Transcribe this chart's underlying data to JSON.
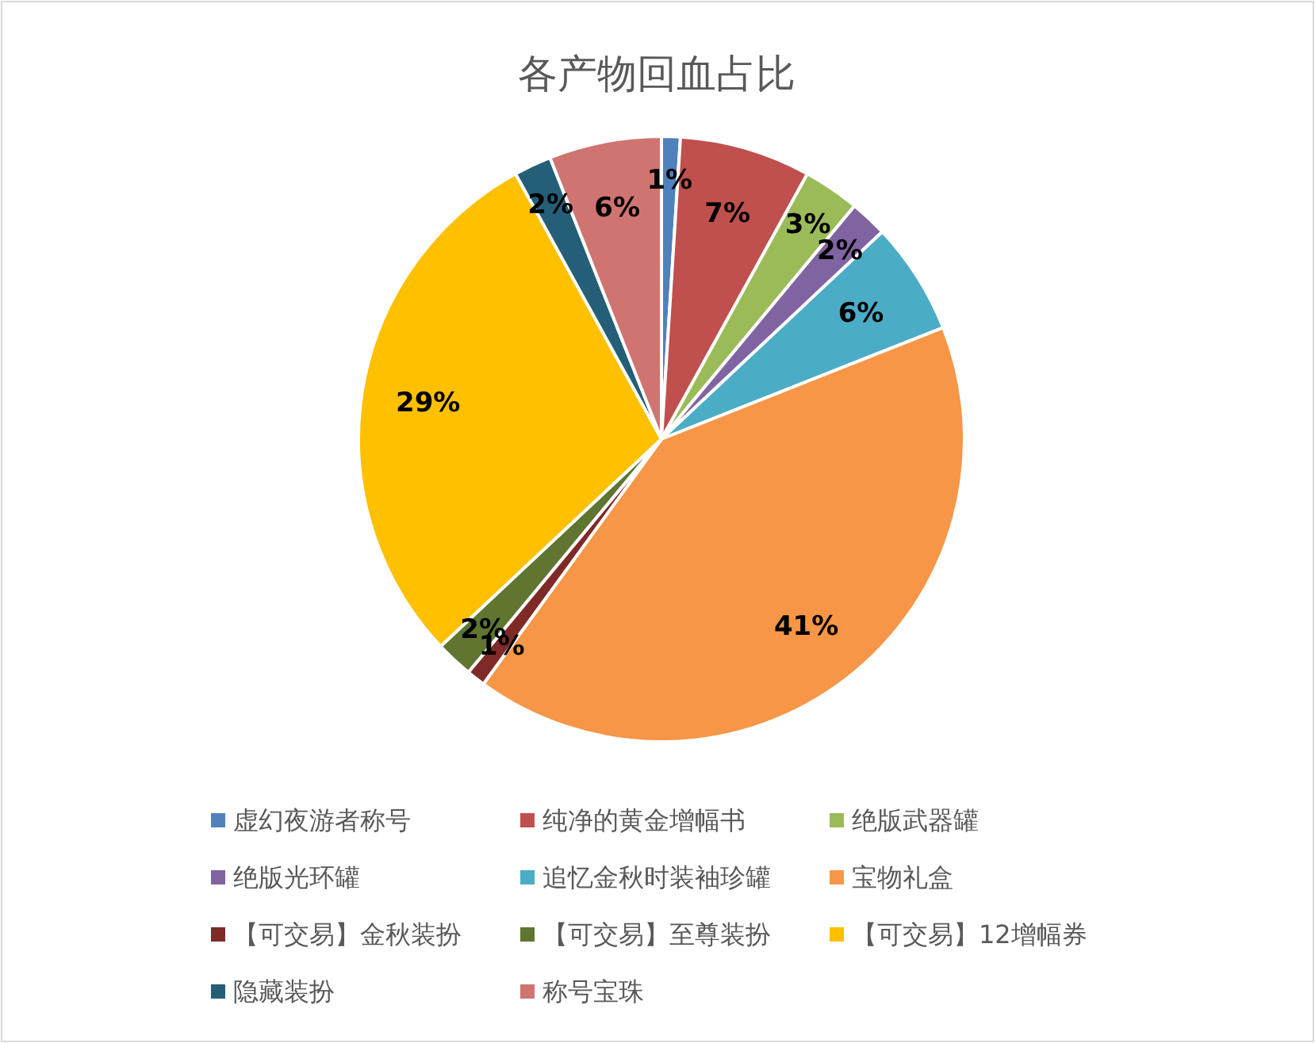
{
  "chart_data": {
    "type": "pie",
    "title": "各产物回血占比",
    "categories": [
      "虚幻夜游者称号",
      "纯净的黄金增幅书",
      "绝版武器罐",
      "绝版光环罐",
      "追忆金秋时装袖珍罐",
      "宝物礼盒",
      "【可交易】金秋装扮",
      "【可交易】至尊装扮",
      "【可交易】12增幅券",
      "隐藏装扮",
      "称号宝珠"
    ],
    "values": [
      1,
      7,
      3,
      2,
      6,
      41,
      1,
      2,
      29,
      2,
      6
    ],
    "value_labels": [
      "1%",
      "7%",
      "3%",
      "2%",
      "6%",
      "41%",
      "1%",
      "2%",
      "29%",
      "2%",
      "6%"
    ],
    "colors": [
      "#4f81bd",
      "#c0504d",
      "#9bbb59",
      "#8064a2",
      "#4bacc6",
      "#f79646",
      "#7f2a27",
      "#5f7530",
      "#ffc000",
      "#245f77",
      "#d07472"
    ],
    "legend": "bottom"
  }
}
